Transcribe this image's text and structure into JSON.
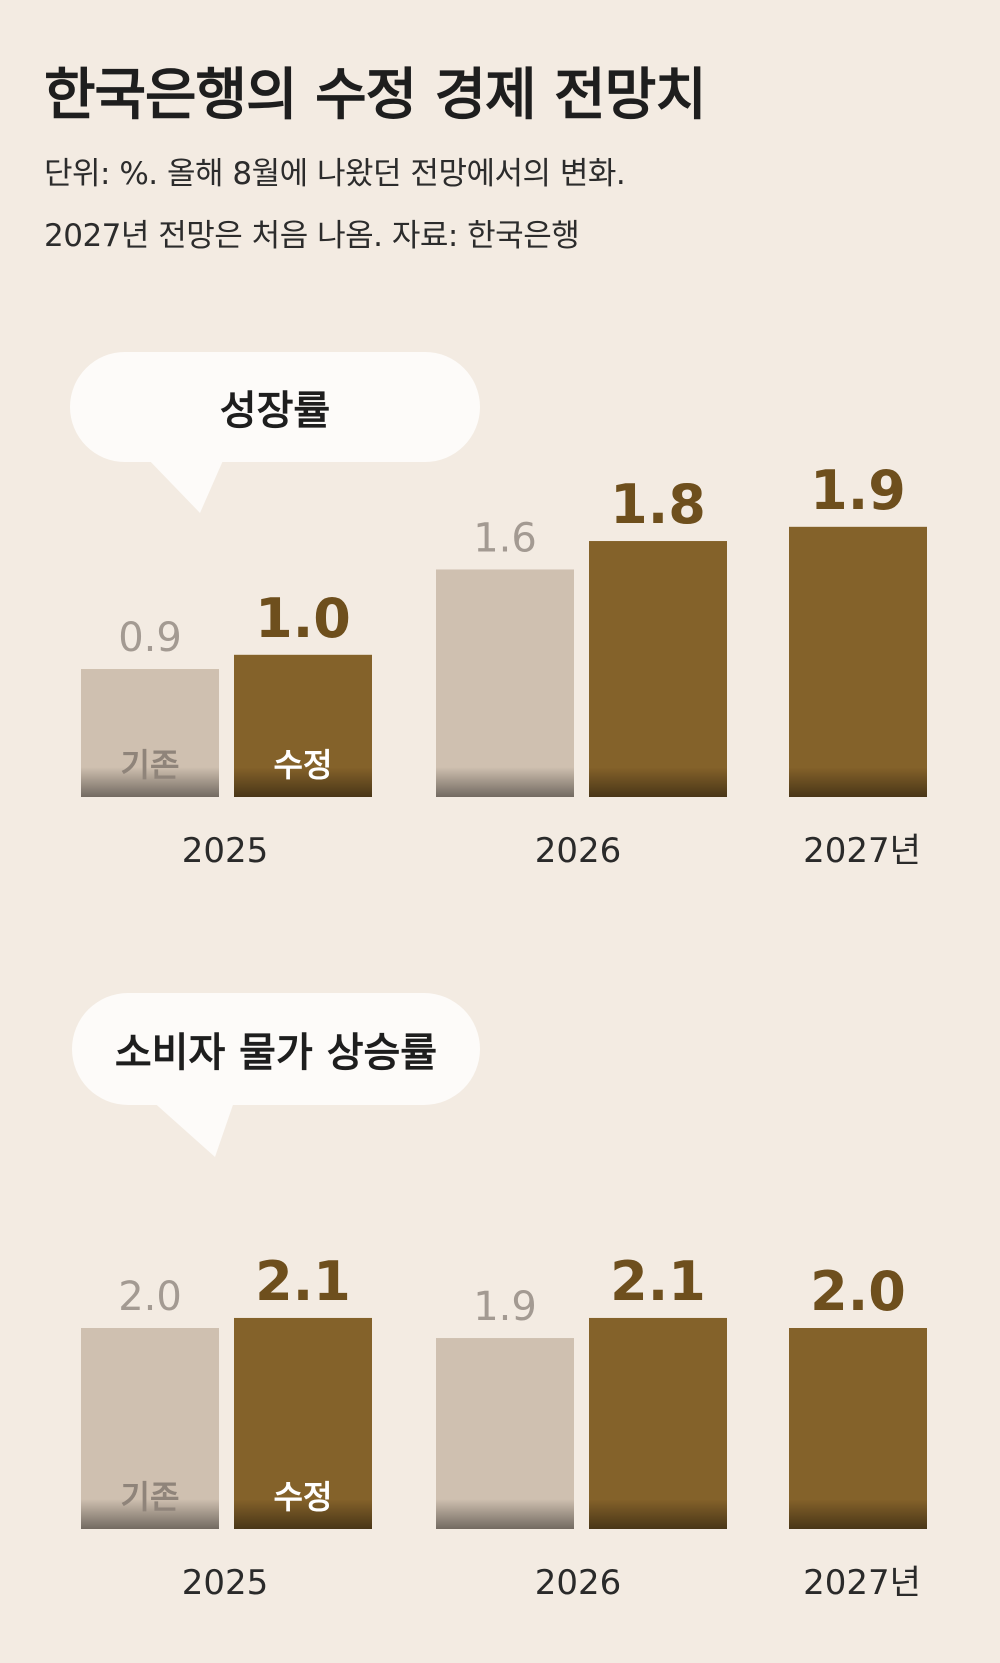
{
  "title": "한국은행의 수정 경제 전망치",
  "subtitle_line1": "단위: %. 올해 8월에 나왔던 전망에서의 변화.",
  "subtitle_line2": "2027년 전망은 처음 나옴. 자료: 한국은행",
  "colors": {
    "background": "#f3ebe2",
    "previous": "#cfc0b0",
    "revised": "#84622a",
    "previous_value_text": "#a39a92",
    "revised_value_text": "#6e4f1d",
    "bubble": "#fdfbf9"
  },
  "chart_data": [
    {
      "type": "bar",
      "title": "성장률",
      "categories": [
        "2025",
        "2026",
        "2027년"
      ],
      "series": [
        {
          "name": "기존",
          "values": [
            0.9,
            1.6,
            null
          ]
        },
        {
          "name": "수정",
          "values": [
            1.0,
            1.8,
            1.9
          ]
        }
      ],
      "value_labels": {
        "기존": [
          "0.9",
          "1.6",
          ""
        ],
        "수정": [
          "1.0",
          "1.8",
          "1.9"
        ]
      },
      "ylim": [
        0,
        2.0
      ],
      "grid": false,
      "legend": "inside-first-bars"
    },
    {
      "type": "bar",
      "title": "소비자 물가 상승률",
      "categories": [
        "2025",
        "2026",
        "2027년"
      ],
      "series": [
        {
          "name": "기존",
          "values": [
            2.0,
            1.9,
            null
          ]
        },
        {
          "name": "수정",
          "values": [
            2.1,
            2.1,
            2.0
          ]
        }
      ],
      "value_labels": {
        "기존": [
          "2.0",
          "1.9",
          ""
        ],
        "수정": [
          "2.1",
          "2.1",
          "2.0"
        ]
      },
      "ylim": [
        0,
        2.2
      ],
      "grid": false,
      "legend": "inside-first-bars"
    }
  ]
}
